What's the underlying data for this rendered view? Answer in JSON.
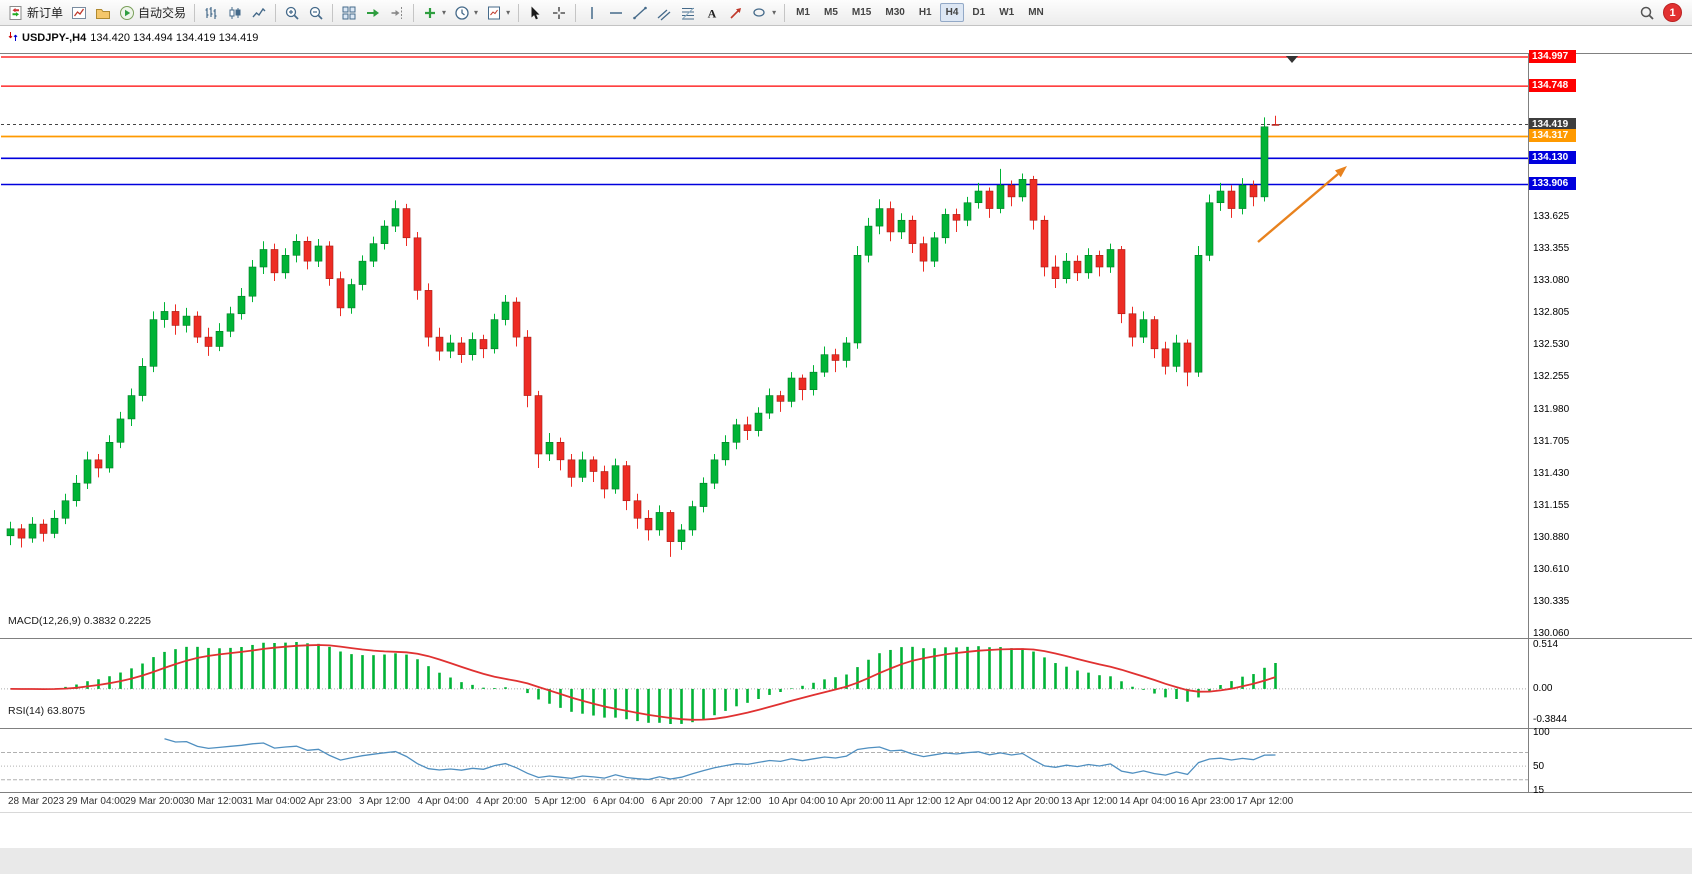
{
  "toolbar": {
    "items": [
      {
        "name": "new-order",
        "label": "新订单"
      },
      {
        "name": "charts-new"
      },
      {
        "name": "profiles"
      },
      {
        "name": "autotrading",
        "label": "自动交易"
      },
      {
        "type": "sep"
      },
      {
        "name": "bar-chart"
      },
      {
        "name": "candlestick-chart"
      },
      {
        "name": "line-chart"
      },
      {
        "type": "sep"
      },
      {
        "name": "zoom-in"
      },
      {
        "name": "zoom-out"
      },
      {
        "type": "sep"
      },
      {
        "name": "tile-windows"
      },
      {
        "name": "auto-scroll"
      },
      {
        "name": "chart-shift"
      },
      {
        "type": "sep"
      },
      {
        "name": "indicators",
        "caret": true
      },
      {
        "name": "periods",
        "caret": true
      },
      {
        "name": "templates",
        "caret": true
      },
      {
        "type": "sep"
      },
      {
        "name": "cursor"
      },
      {
        "name": "crosshair"
      },
      {
        "type": "sep"
      },
      {
        "name": "vertical-line"
      },
      {
        "name": "horizontal-line"
      },
      {
        "name": "trendline"
      },
      {
        "name": "equidistant-channel"
      },
      {
        "name": "fibonacci"
      },
      {
        "name": "text"
      },
      {
        "name": "arrow-label"
      },
      {
        "name": "shapes",
        "caret": true
      },
      {
        "type": "sep"
      }
    ],
    "timeframes": [
      "M1",
      "M5",
      "M15",
      "M30",
      "H1",
      "H4",
      "D1",
      "W1",
      "MN"
    ],
    "active_timeframe": "H4",
    "notification_count": "1"
  },
  "chart": {
    "symbol_title": "USDJPY-,H4",
    "ohlc": "134.420 134.494 134.419 134.419"
  },
  "levels": [
    {
      "price": 134.997,
      "color": "#ff0000",
      "width": 1.2
    },
    {
      "price": 134.748,
      "color": "#ff0000",
      "width": 1.2
    },
    {
      "price": 134.317,
      "color": "#ff9a00",
      "width": 1.8
    },
    {
      "price": 134.13,
      "color": "#0000dd",
      "width": 1.6
    },
    {
      "price": 133.906,
      "color": "#0000dd",
      "width": 1.6
    }
  ],
  "current_price": {
    "value": 134.419,
    "line_color": "#444444"
  },
  "price_axis": {
    "labels": [
      "133.625",
      "133.355",
      "133.080",
      "132.805",
      "132.530",
      "132.255",
      "131.980",
      "131.705",
      "131.430",
      "131.155",
      "130.880",
      "130.610",
      "130.335",
      "130.060"
    ],
    "badges": [
      {
        "text": "134.997",
        "bg": "#ff0000"
      },
      {
        "text": "134.748",
        "bg": "#ff0000"
      },
      {
        "text": "134.419",
        "bg": "#3d3d3d"
      },
      {
        "text": "134.317",
        "bg": "#ff9a00"
      },
      {
        "text": "134.130",
        "bg": "#0000dd"
      },
      {
        "text": "133.906",
        "bg": "#0000dd"
      }
    ]
  },
  "macd_panel": {
    "label": "MACD(12,26,9) 0.3832 0.2225",
    "axis_labels": [
      "0.514",
      "0.00",
      "-0.3844"
    ]
  },
  "rsi_panel": {
    "label": "RSI(14) 63.8075",
    "axis_labels": [
      "100",
      "50",
      "15"
    ],
    "level_lines": [
      70,
      50,
      30
    ]
  },
  "time_axis": {
    "labels": [
      "28 Mar 2023",
      "29 Mar 04:00",
      "29 Mar 20:00",
      "30 Mar 12:00",
      "31 Mar 04:00",
      "2 Apr 23:00",
      "3 Apr 12:00",
      "4 Apr 04:00",
      "4 Apr 20:00",
      "5 Apr 12:00",
      "6 Apr 04:00",
      "6 Apr 20:00",
      "7 Apr 12:00",
      "10 Apr 04:00",
      "10 Apr 20:00",
      "11 Apr 12:00",
      "12 Apr 04:00",
      "12 Apr 20:00",
      "13 Apr 12:00",
      "14 Apr 04:00",
      "16 Apr 23:00",
      "17 Apr 12:00"
    ]
  },
  "annotation": {
    "type": "arrow",
    "color": "#e8821e"
  },
  "chart_data": {
    "type": "candlestick",
    "symbol": "USDJPY",
    "timeframe": "H4",
    "title": "USDJPY-,H4 134.420 134.494 134.419 134.419",
    "visible_price_range": [
      130.06,
      134.997
    ],
    "up_color": "#00b336",
    "down_color": "#ed2c24",
    "candles": [
      [
        130.9,
        131.02,
        130.82,
        130.96
      ],
      [
        130.96,
        131.0,
        130.8,
        130.88
      ],
      [
        130.88,
        131.06,
        130.84,
        131.0
      ],
      [
        131.0,
        131.04,
        130.85,
        130.92
      ],
      [
        130.92,
        131.12,
        130.88,
        131.05
      ],
      [
        131.05,
        131.26,
        131.0,
        131.2
      ],
      [
        131.2,
        131.42,
        131.15,
        131.35
      ],
      [
        131.35,
        131.62,
        131.3,
        131.55
      ],
      [
        131.55,
        131.6,
        131.4,
        131.48
      ],
      [
        131.48,
        131.76,
        131.44,
        131.7
      ],
      [
        131.7,
        131.96,
        131.65,
        131.9
      ],
      [
        131.9,
        132.16,
        131.84,
        132.1
      ],
      [
        132.1,
        132.42,
        132.05,
        132.35
      ],
      [
        132.35,
        132.82,
        132.3,
        132.75
      ],
      [
        132.75,
        132.9,
        132.68,
        132.82
      ],
      [
        132.82,
        132.88,
        132.62,
        132.7
      ],
      [
        132.7,
        132.85,
        132.64,
        132.78
      ],
      [
        132.78,
        132.82,
        132.55,
        132.6
      ],
      [
        132.6,
        132.68,
        132.44,
        132.52
      ],
      [
        132.52,
        132.72,
        132.48,
        132.65
      ],
      [
        132.65,
        132.86,
        132.6,
        132.8
      ],
      [
        132.8,
        133.02,
        132.75,
        132.95
      ],
      [
        132.95,
        133.26,
        132.9,
        133.2
      ],
      [
        133.2,
        133.42,
        133.14,
        133.35
      ],
      [
        133.35,
        133.4,
        133.08,
        133.15
      ],
      [
        133.15,
        133.36,
        133.1,
        133.3
      ],
      [
        133.3,
        133.48,
        133.24,
        133.42
      ],
      [
        133.42,
        133.46,
        133.18,
        133.25
      ],
      [
        133.25,
        133.44,
        133.2,
        133.38
      ],
      [
        133.38,
        133.42,
        133.04,
        133.1
      ],
      [
        133.1,
        133.16,
        132.78,
        132.85
      ],
      [
        132.85,
        133.1,
        132.8,
        133.05
      ],
      [
        133.05,
        133.3,
        133.0,
        133.25
      ],
      [
        133.25,
        133.46,
        133.2,
        133.4
      ],
      [
        133.4,
        133.6,
        133.35,
        133.55
      ],
      [
        133.55,
        133.77,
        133.5,
        133.7
      ],
      [
        133.7,
        133.74,
        133.38,
        133.45
      ],
      [
        133.45,
        133.5,
        132.92,
        133.0
      ],
      [
        133.0,
        133.06,
        132.52,
        132.6
      ],
      [
        132.6,
        132.68,
        132.4,
        132.48
      ],
      [
        132.48,
        132.62,
        132.42,
        132.55
      ],
      [
        132.55,
        132.6,
        132.38,
        132.45
      ],
      [
        132.45,
        132.64,
        132.4,
        132.58
      ],
      [
        132.58,
        132.62,
        132.42,
        132.5
      ],
      [
        132.5,
        132.8,
        132.46,
        132.75
      ],
      [
        132.75,
        132.96,
        132.7,
        132.9
      ],
      [
        132.9,
        132.94,
        132.52,
        132.6
      ],
      [
        132.6,
        132.66,
        132.0,
        132.1
      ],
      [
        132.1,
        132.14,
        131.48,
        131.6
      ],
      [
        131.6,
        131.78,
        131.54,
        131.7
      ],
      [
        131.7,
        131.74,
        131.46,
        131.55
      ],
      [
        131.55,
        131.6,
        131.32,
        131.4
      ],
      [
        131.4,
        131.62,
        131.36,
        131.55
      ],
      [
        131.55,
        131.58,
        131.36,
        131.45
      ],
      [
        131.45,
        131.5,
        131.22,
        131.3
      ],
      [
        131.3,
        131.56,
        131.26,
        131.5
      ],
      [
        131.5,
        131.54,
        131.12,
        131.2
      ],
      [
        131.2,
        131.26,
        130.96,
        131.05
      ],
      [
        131.05,
        131.12,
        130.86,
        130.95
      ],
      [
        130.95,
        131.16,
        130.9,
        131.1
      ],
      [
        131.1,
        131.12,
        130.72,
        130.85
      ],
      [
        130.85,
        131.0,
        130.78,
        130.95
      ],
      [
        130.95,
        131.2,
        130.9,
        131.15
      ],
      [
        131.15,
        131.4,
        131.1,
        131.35
      ],
      [
        131.35,
        131.6,
        131.3,
        131.55
      ],
      [
        131.55,
        131.76,
        131.5,
        131.7
      ],
      [
        131.7,
        131.9,
        131.64,
        131.85
      ],
      [
        131.85,
        131.92,
        131.72,
        131.8
      ],
      [
        131.8,
        132.0,
        131.75,
        131.95
      ],
      [
        131.95,
        132.16,
        131.9,
        132.1
      ],
      [
        132.1,
        132.14,
        131.96,
        132.05
      ],
      [
        132.05,
        132.3,
        132.0,
        132.25
      ],
      [
        132.25,
        132.28,
        132.06,
        132.15
      ],
      [
        132.15,
        132.36,
        132.1,
        132.3
      ],
      [
        132.3,
        132.52,
        132.26,
        132.45
      ],
      [
        132.45,
        132.5,
        132.3,
        132.4
      ],
      [
        132.4,
        132.6,
        132.34,
        132.55
      ],
      [
        132.55,
        133.38,
        132.5,
        133.3
      ],
      [
        133.3,
        133.62,
        133.24,
        133.55
      ],
      [
        133.55,
        133.78,
        133.48,
        133.7
      ],
      [
        133.7,
        133.76,
        133.42,
        133.5
      ],
      [
        133.5,
        133.66,
        133.44,
        133.6
      ],
      [
        133.6,
        133.64,
        133.32,
        133.4
      ],
      [
        133.4,
        133.46,
        133.16,
        133.25
      ],
      [
        133.25,
        133.5,
        133.2,
        133.45
      ],
      [
        133.45,
        133.7,
        133.4,
        133.65
      ],
      [
        133.65,
        133.7,
        133.5,
        133.6
      ],
      [
        133.6,
        133.8,
        133.55,
        133.75
      ],
      [
        133.75,
        133.92,
        133.7,
        133.85
      ],
      [
        133.85,
        133.88,
        133.62,
        133.7
      ],
      [
        133.7,
        134.04,
        133.66,
        133.9
      ],
      [
        133.9,
        133.94,
        133.72,
        133.8
      ],
      [
        133.8,
        134.0,
        133.76,
        133.95
      ],
      [
        133.95,
        133.98,
        133.52,
        133.6
      ],
      [
        133.6,
        133.64,
        133.12,
        133.2
      ],
      [
        133.2,
        133.3,
        133.02,
        133.1
      ],
      [
        133.1,
        133.32,
        133.06,
        133.25
      ],
      [
        133.25,
        133.3,
        133.08,
        133.15
      ],
      [
        133.15,
        133.36,
        133.1,
        133.3
      ],
      [
        133.3,
        133.34,
        133.12,
        133.2
      ],
      [
        133.2,
        133.4,
        133.15,
        133.35
      ],
      [
        133.35,
        133.38,
        132.72,
        132.8
      ],
      [
        132.8,
        132.86,
        132.52,
        132.6
      ],
      [
        132.6,
        132.82,
        132.55,
        132.75
      ],
      [
        132.75,
        132.78,
        132.42,
        132.5
      ],
      [
        132.5,
        132.56,
        132.28,
        132.35
      ],
      [
        132.35,
        132.62,
        132.3,
        132.55
      ],
      [
        132.55,
        132.58,
        132.18,
        132.3
      ],
      [
        132.3,
        133.38,
        132.26,
        133.3
      ],
      [
        133.3,
        133.82,
        133.25,
        133.75
      ],
      [
        133.75,
        133.92,
        133.68,
        133.85
      ],
      [
        133.85,
        133.9,
        133.62,
        133.7
      ],
      [
        133.7,
        133.96,
        133.65,
        133.9
      ],
      [
        133.9,
        133.94,
        133.72,
        133.8
      ],
      [
        133.8,
        134.48,
        133.76,
        134.4
      ],
      [
        134.42,
        134.494,
        134.419,
        134.419
      ]
    ],
    "indicators": [
      {
        "type": "MACD",
        "params": [
          12,
          26,
          9
        ],
        "display_values": "0.3832 0.2225",
        "histogram_color": "#00b336",
        "signal_color": "#e03131",
        "axis_range": [
          -0.3844,
          0.514
        ]
      },
      {
        "type": "RSI",
        "params": [
          14
        ],
        "display_value": "63.8075",
        "line_color": "#4f8fc0",
        "scale": [
          15,
          100
        ]
      }
    ]
  }
}
